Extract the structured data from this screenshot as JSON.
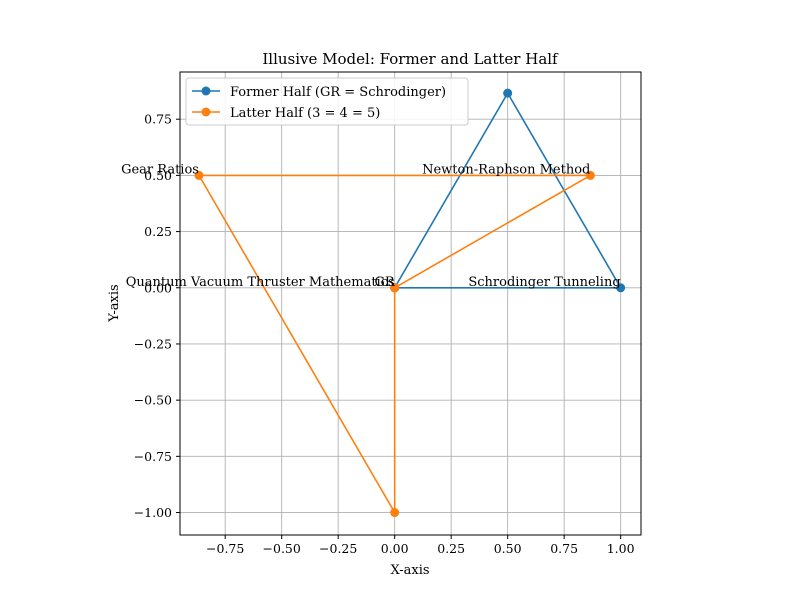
{
  "chart_data": {
    "type": "line",
    "title": "Illusive Model: Former and Latter Half",
    "xlabel": "X-axis",
    "ylabel": "Y-axis",
    "xlim": [
      -0.95,
      1.09
    ],
    "ylim": [
      -1.1,
      0.96
    ],
    "grid": true,
    "legend_position": "upper left",
    "x_ticks": [
      -0.75,
      -0.5,
      -0.25,
      0.0,
      0.25,
      0.5,
      0.75,
      1.0
    ],
    "x_tick_labels": [
      "−0.75",
      "−0.50",
      "−0.25",
      "0.00",
      "0.25",
      "0.50",
      "0.75",
      "1.00"
    ],
    "y_ticks": [
      0.75,
      0.5,
      0.25,
      0.0,
      -0.25,
      -0.5,
      -0.75,
      -1.0
    ],
    "y_tick_labels": [
      "0.75",
      "0.50",
      "0.25",
      "0.00",
      "−0.25",
      "−0.50",
      "−0.75",
      "−1.00"
    ],
    "series": [
      {
        "name": "Former Half (GR = Schrodinger)",
        "color": "#1f77b4",
        "points": [
          [
            0,
            0
          ],
          [
            1.0,
            0
          ],
          [
            0.5,
            0.866
          ],
          [
            0,
            0
          ]
        ]
      },
      {
        "name": "Latter Half (3 = 4 = 5)",
        "color": "#ff7f0e",
        "points": [
          [
            0,
            0
          ],
          [
            0.866,
            0.5
          ],
          [
            -0.866,
            0.5
          ],
          [
            0,
            -1.0
          ],
          [
            0,
            0
          ]
        ]
      }
    ],
    "annotations": [
      {
        "text": "GR",
        "x": 0,
        "y": 0
      },
      {
        "text": "Schrodinger Tunneling",
        "x": 1.0,
        "y": 0
      },
      {
        "text": "Newton-Raphson Method",
        "x": 0.866,
        "y": 0.5
      },
      {
        "text": "Gear Ratios",
        "x": -0.866,
        "y": 0.5
      },
      {
        "text": "Quantum Vacuum Thruster Mathematics",
        "x": 0,
        "y": 0
      }
    ]
  }
}
